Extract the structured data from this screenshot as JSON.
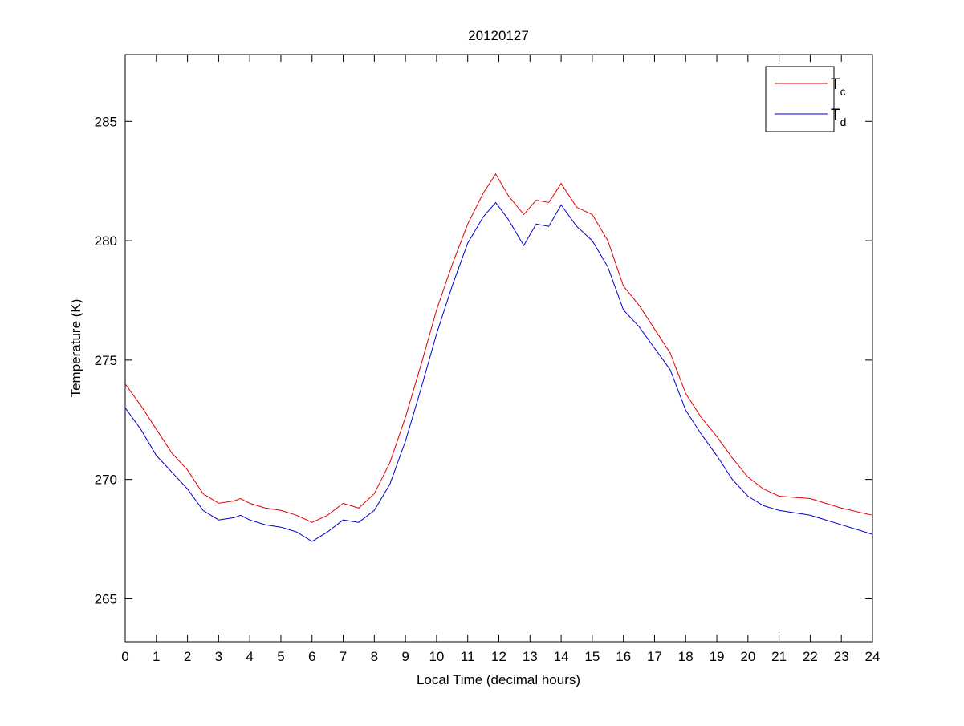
{
  "chart_data": {
    "type": "line",
    "title": "20120127",
    "xlabel": "Local Time (decimal hours)",
    "ylabel": "Temperature (K)",
    "xlim": [
      0,
      24
    ],
    "ylim": [
      263.2,
      287.8
    ],
    "xticks": [
      0,
      1,
      2,
      3,
      4,
      5,
      6,
      7,
      8,
      9,
      10,
      11,
      12,
      13,
      14,
      15,
      16,
      17,
      18,
      19,
      20,
      21,
      22,
      23,
      24
    ],
    "yticks": [
      265,
      270,
      275,
      280,
      285
    ],
    "grid": false,
    "legend_position": "top-right",
    "x": [
      0,
      0.5,
      1,
      1.5,
      2,
      2.5,
      3,
      3.5,
      3.7,
      4,
      4.5,
      5,
      5.5,
      6,
      6.5,
      7,
      7.5,
      8,
      8.5,
      9,
      9.5,
      10,
      10.5,
      11,
      11.5,
      11.9,
      12.3,
      12.8,
      13.2,
      13.6,
      14,
      14.5,
      15,
      15.5,
      16,
      16.5,
      17,
      17.5,
      18,
      18.5,
      19,
      19.5,
      20,
      20.5,
      21,
      22,
      23,
      24
    ],
    "series": [
      {
        "name": "T",
        "subscript": "c",
        "color": "#e00000",
        "values": [
          274.0,
          273.1,
          272.1,
          271.1,
          270.4,
          269.4,
          269.0,
          269.1,
          269.2,
          269.0,
          268.8,
          268.7,
          268.5,
          268.2,
          268.5,
          269.0,
          268.8,
          269.4,
          270.7,
          272.6,
          274.8,
          277.1,
          279.0,
          280.7,
          282.0,
          282.8,
          281.9,
          281.1,
          281.7,
          281.6,
          282.4,
          281.4,
          281.1,
          280.0,
          278.1,
          277.3,
          276.3,
          275.3,
          273.6,
          272.6,
          271.8,
          270.9,
          270.1,
          269.6,
          269.3,
          269.2,
          268.8,
          268.5
        ]
      },
      {
        "name": "T",
        "subscript": "d",
        "color": "#0000d0",
        "values": [
          273.0,
          272.1,
          271.0,
          270.3,
          269.6,
          268.7,
          268.3,
          268.4,
          268.5,
          268.3,
          268.1,
          268.0,
          267.8,
          267.4,
          267.8,
          268.3,
          268.2,
          268.7,
          269.8,
          271.6,
          273.8,
          276.1,
          278.1,
          279.9,
          281.0,
          281.6,
          280.9,
          279.8,
          280.7,
          280.6,
          281.5,
          280.6,
          280.0,
          278.9,
          277.1,
          276.4,
          275.5,
          274.6,
          272.9,
          271.9,
          271.0,
          270.0,
          269.3,
          268.9,
          268.7,
          268.5,
          268.1,
          267.7
        ]
      }
    ]
  }
}
